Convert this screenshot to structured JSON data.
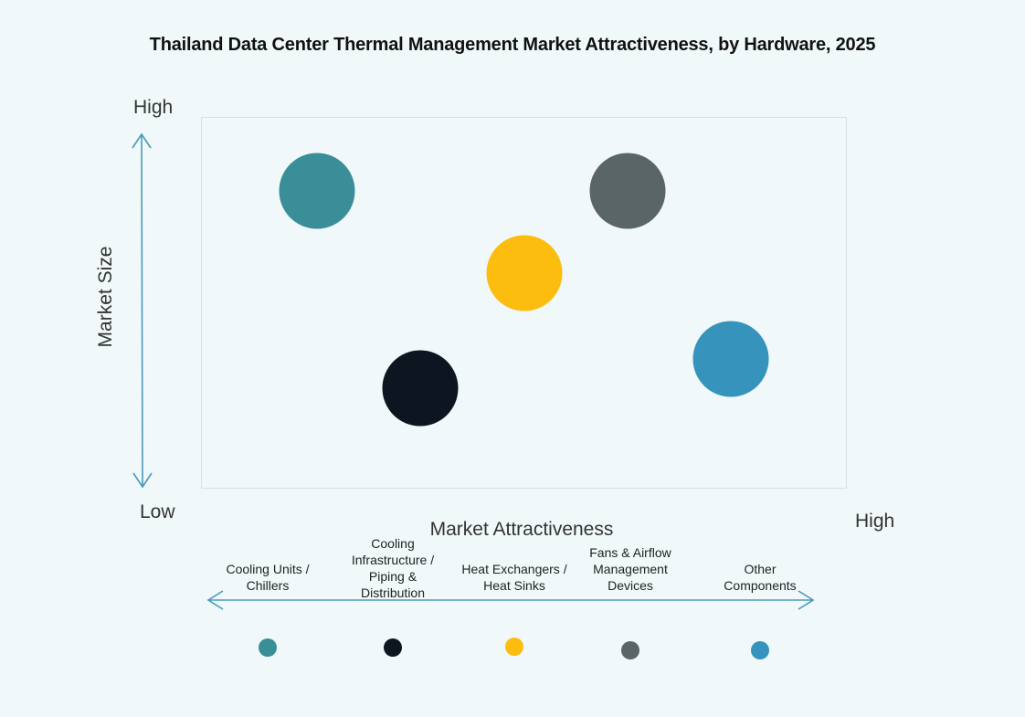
{
  "title": "Thailand Data Center Thermal Management Market Attractiveness,  by Hardware, 2025",
  "y_axis": {
    "label": "Market Size",
    "high": "High",
    "low": "Low"
  },
  "x_axis": {
    "label": "Market Attractiveness",
    "low": "Low",
    "high": "High"
  },
  "categories": [
    {
      "lines": [
        "Cooling Units /",
        "Chillers"
      ],
      "color": "#3a8e98"
    },
    {
      "lines": [
        "Cooling",
        "Infrastructure /",
        "Piping &",
        "Distribution"
      ],
      "color": "#0d1520"
    },
    {
      "lines": [
        "Heat Exchangers /",
        "Heat Sinks"
      ],
      "color": "#fdbd0e"
    },
    {
      "lines": [
        "Fans & Airflow",
        "Management",
        "Devices"
      ],
      "color": "#5a6666"
    },
    {
      "lines": [
        "Other",
        "Components"
      ],
      "color": "#3693bc"
    }
  ],
  "chart_data": {
    "type": "scatter",
    "title": "Thailand Data Center Thermal Management Market Attractiveness,  by Hardware, 2025",
    "xlabel": "Market Attractiveness",
    "ylabel": "Market Size",
    "x_range": [
      "Low",
      "High"
    ],
    "y_range": [
      "Low",
      "High"
    ],
    "grid": false,
    "legend_position": "bottom",
    "series": [
      {
        "name": "Cooling Units / Chillers",
        "x": 0.18,
        "y": 0.8,
        "color": "#3a8e98"
      },
      {
        "name": "Cooling Infrastructure / Piping & Distribution",
        "x": 0.34,
        "y": 0.27,
        "color": "#0d1520"
      },
      {
        "name": "Heat Exchangers / Heat Sinks",
        "x": 0.5,
        "y": 0.58,
        "color": "#fdbd0e"
      },
      {
        "name": "Fans & Airflow Management Devices",
        "x": 0.66,
        "y": 0.8,
        "color": "#5a6666"
      },
      {
        "name": "Other Components",
        "x": 0.82,
        "y": 0.35,
        "color": "#3693bc"
      }
    ]
  }
}
